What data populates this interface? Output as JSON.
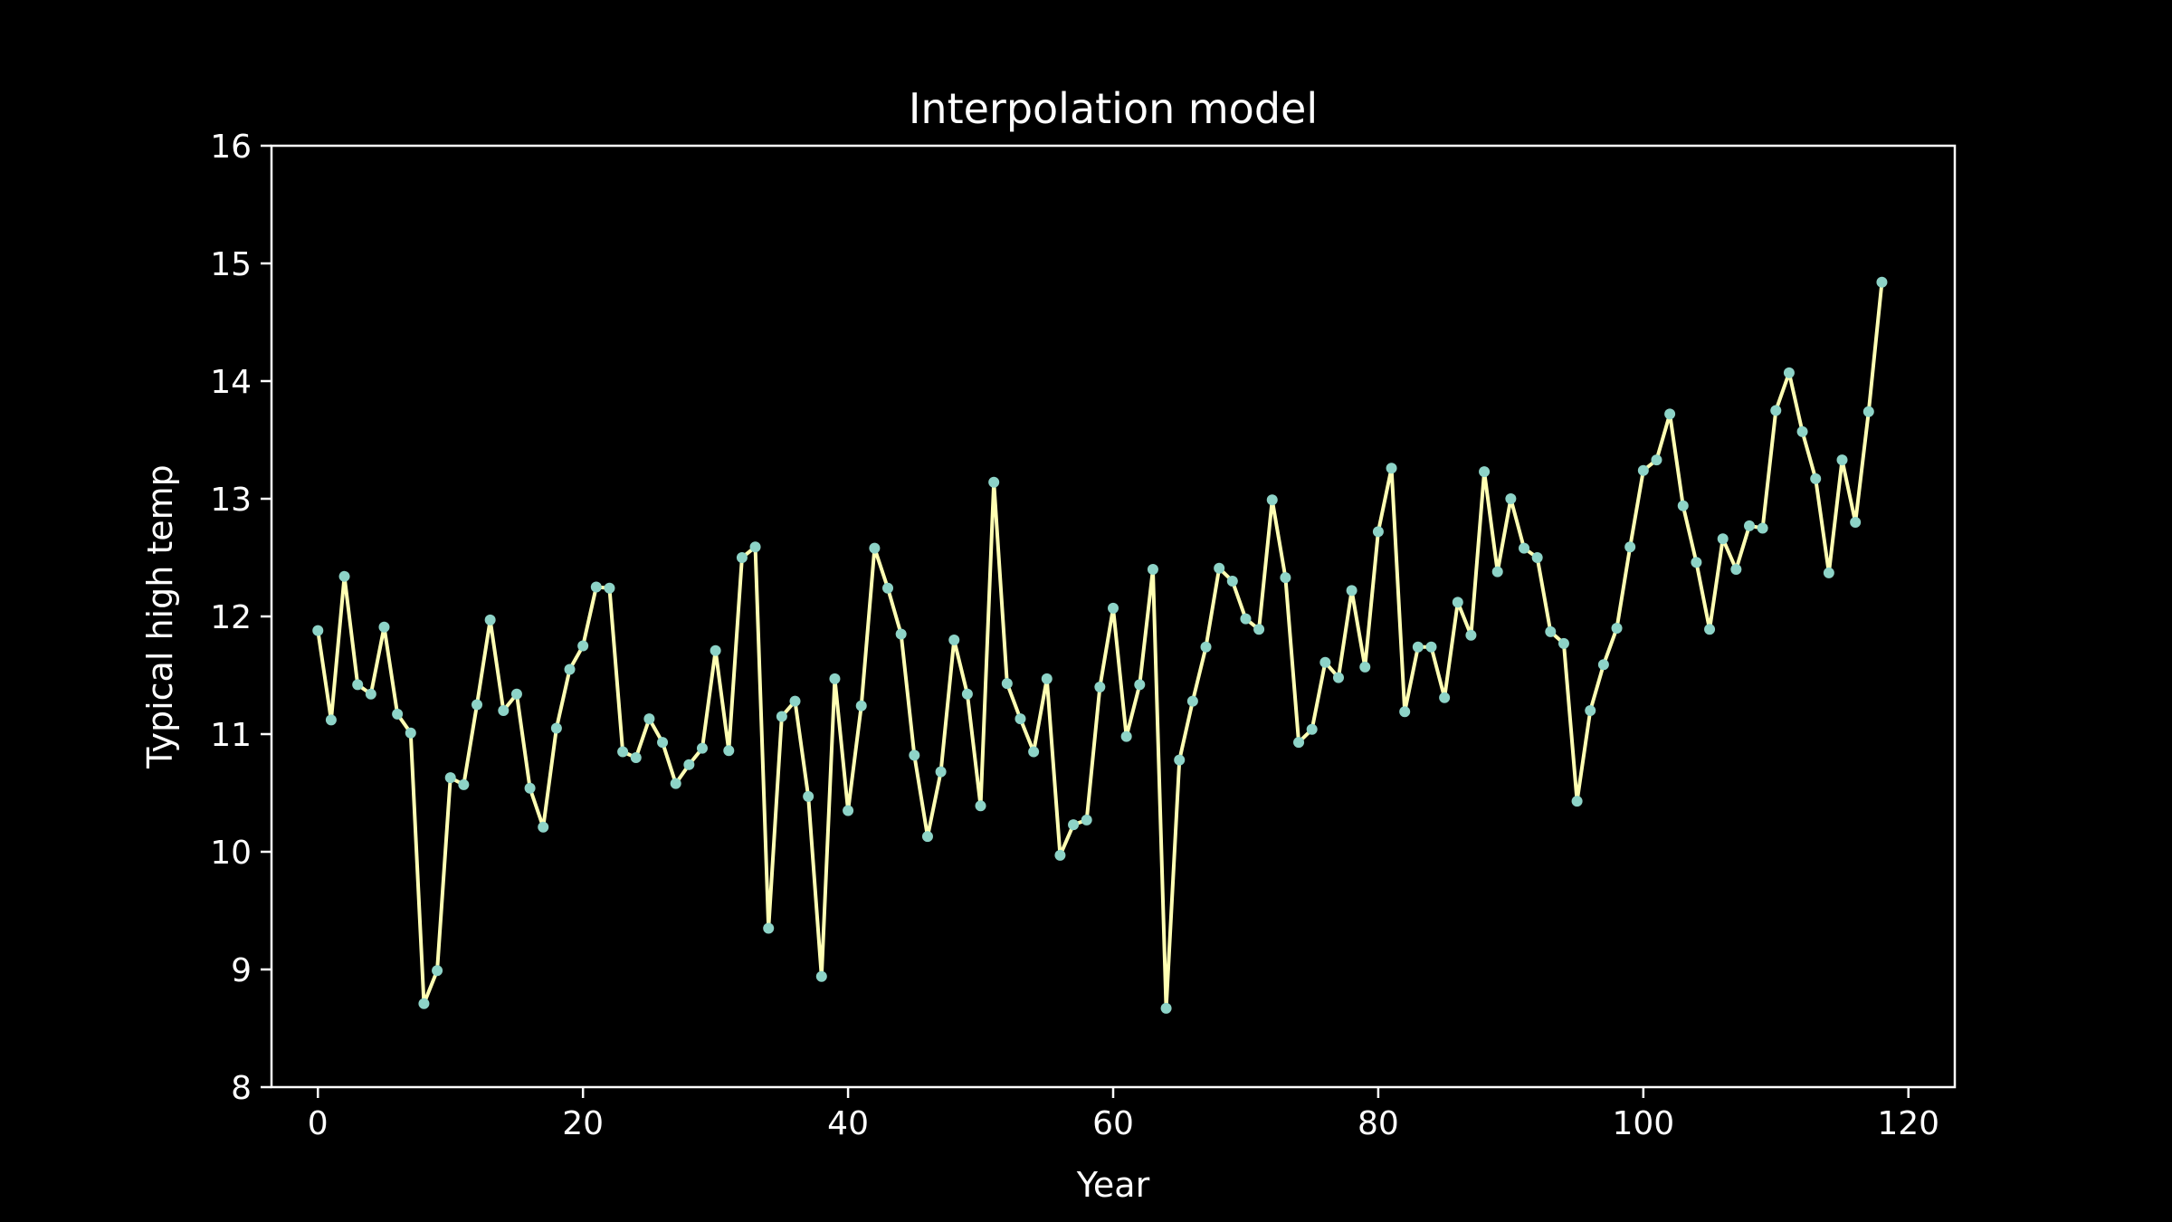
{
  "chart_data": {
    "type": "line",
    "title": "Interpolation model",
    "xlabel": "Year",
    "ylabel": "Typical high temp",
    "xlim": [
      -3.5,
      123.5
    ],
    "ylim": [
      8,
      16
    ],
    "xticks": [
      0,
      20,
      40,
      60,
      80,
      100,
      120
    ],
    "yticks": [
      8,
      9,
      10,
      11,
      12,
      13,
      14,
      15,
      16
    ],
    "grid": false,
    "legend": "none",
    "colors": {
      "background": "#000000",
      "line": "#ffffb3",
      "marker": "#8dd3c7",
      "text": "#ffffff"
    },
    "series": [
      {
        "values": [
          11.88,
          11.12,
          12.34,
          11.42,
          11.34,
          11.91,
          11.17,
          11.01,
          8.71,
          8.99,
          10.63,
          10.57,
          11.25,
          11.97,
          11.2,
          11.34,
          10.54,
          10.21,
          11.05,
          11.55,
          11.75,
          12.25,
          12.24,
          10.85,
          10.8,
          11.13,
          10.93,
          10.58,
          10.74,
          10.88,
          11.71,
          10.86,
          12.5,
          12.59,
          9.35,
          11.15,
          11.28,
          10.47,
          8.94,
          11.47,
          10.35,
          11.24,
          12.58,
          12.24,
          11.85,
          10.82,
          10.13,
          10.68,
          11.8,
          11.34,
          10.39,
          13.14,
          11.43,
          11.13,
          10.85,
          11.47,
          9.97,
          10.23,
          10.27,
          11.4,
          12.07,
          10.98,
          11.42,
          12.4,
          8.67,
          10.78,
          11.28,
          11.74,
          12.41,
          12.3,
          11.98,
          11.89,
          12.99,
          12.33,
          10.93,
          11.04,
          11.61,
          11.48,
          12.22,
          11.57,
          12.72,
          13.26,
          11.19,
          11.74,
          11.74,
          11.31,
          12.12,
          11.84,
          13.23,
          12.38,
          13.0,
          12.58,
          12.5,
          11.87,
          11.77,
          10.43,
          11.2,
          11.59,
          11.9,
          12.59,
          13.24,
          13.33,
          13.72,
          12.94,
          12.46,
          11.89,
          12.66,
          12.4,
          12.77,
          12.75,
          13.75,
          14.07,
          13.57,
          13.17,
          12.37,
          13.33,
          12.8,
          13.74,
          14.84
        ]
      }
    ]
  }
}
